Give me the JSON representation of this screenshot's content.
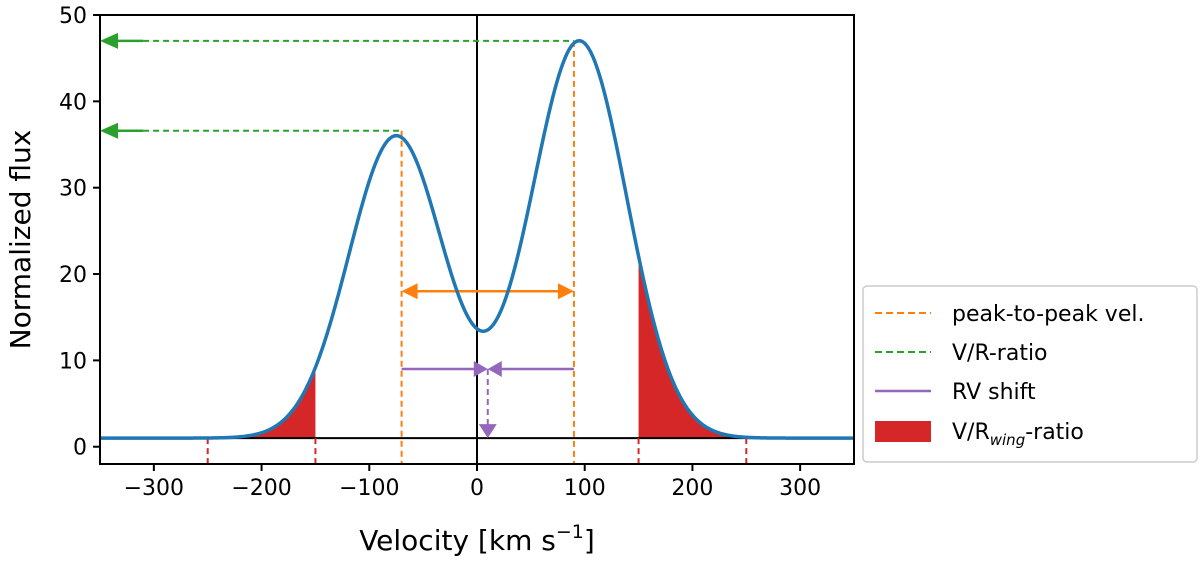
{
  "chart_data": {
    "type": "line",
    "title": "",
    "xlabel": {
      "main": "Velocity [km s",
      "sup": "−1",
      "tail": "]"
    },
    "ylabel": "Normalized flux",
    "xlim": [
      -350,
      350
    ],
    "ylim": [
      -2,
      50
    ],
    "xticks": [
      -300,
      -200,
      -100,
      0,
      100,
      200,
      300
    ],
    "xtick_labels": [
      "−300",
      "−200",
      "−100",
      "0",
      "100",
      "200",
      "300"
    ],
    "yticks": [
      0,
      10,
      20,
      30,
      40,
      50
    ],
    "ytick_labels": [
      "0",
      "10",
      "20",
      "30",
      "40",
      "50"
    ],
    "profile": {
      "baseline": 1,
      "components": [
        {
          "amplitude": 35,
          "center": -75,
          "sigma": 44
        },
        {
          "amplitude": 46,
          "center": 95,
          "sigma": 44
        }
      ],
      "color": "#1f77b4"
    },
    "reference_lines": {
      "zero_velocity": 0,
      "continuum_level": 1
    },
    "peaks": {
      "violet": {
        "velocity": -70,
        "flux": 36.6
      },
      "red": {
        "velocity": 90,
        "flux": 47
      }
    },
    "peak_to_peak": {
      "from": -70,
      "to": 90,
      "at_flux": 18,
      "color": "#ff7f0e"
    },
    "vr_ratio": {
      "arrow_to_velocity": -350,
      "dashes_start_velocity": -310,
      "levels": [
        47,
        36.6
      ],
      "color": "#2ca02c"
    },
    "rv_shift": {
      "left_from": -70,
      "right_from": 90,
      "center": 10,
      "at_flux": 9,
      "drop_to_flux": 1,
      "color": "#9467bd"
    },
    "wing_regions": [
      {
        "from": -250,
        "to": -150
      },
      {
        "from": 150,
        "to": 250
      }
    ],
    "wing_fill_color": "#d62728",
    "legend": {
      "position": "outside-right",
      "entries": [
        {
          "label": "peak-to-peak vel.",
          "style": "dashed",
          "color": "#ff7f0e"
        },
        {
          "label": "V/R-ratio",
          "style": "dashed",
          "color": "#2ca02c"
        },
        {
          "label": "RV shift",
          "style": "solid",
          "color": "#9467bd"
        },
        {
          "label_main": "V/R",
          "label_sub": "wing",
          "label_tail": "-ratio",
          "style": "patch",
          "color": "#d62728"
        }
      ]
    }
  }
}
